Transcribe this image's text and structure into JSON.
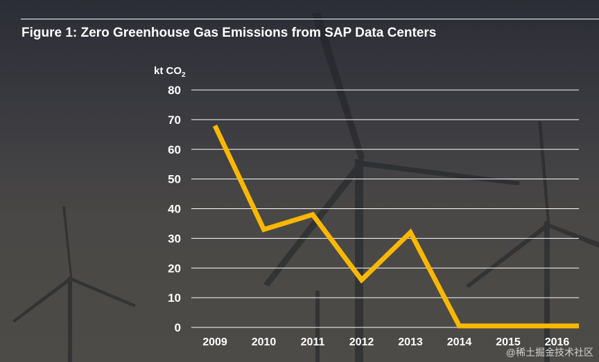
{
  "title": "Figure 1: Zero Greenhouse Gas Emissions from SAP Data Centers",
  "watermark": "@稀土掘金技术社区",
  "chart_data": {
    "type": "line",
    "title": "Figure 1: Zero Greenhouse Gas Emissions from SAP Data Centers",
    "ylabel": "kt CO",
    "ylabel_subscript": "2",
    "xlabel": "",
    "categories": [
      "2009",
      "2010",
      "2011",
      "2012",
      "2013",
      "2014",
      "2015",
      "2016"
    ],
    "values": [
      68,
      33,
      38,
      16,
      32,
      0.5,
      0.5,
      0.5
    ],
    "ylim": [
      0,
      80
    ],
    "yticks": [
      0,
      10,
      20,
      30,
      40,
      50,
      60,
      70,
      80
    ],
    "grid": true,
    "line_color": "#f9b800"
  }
}
